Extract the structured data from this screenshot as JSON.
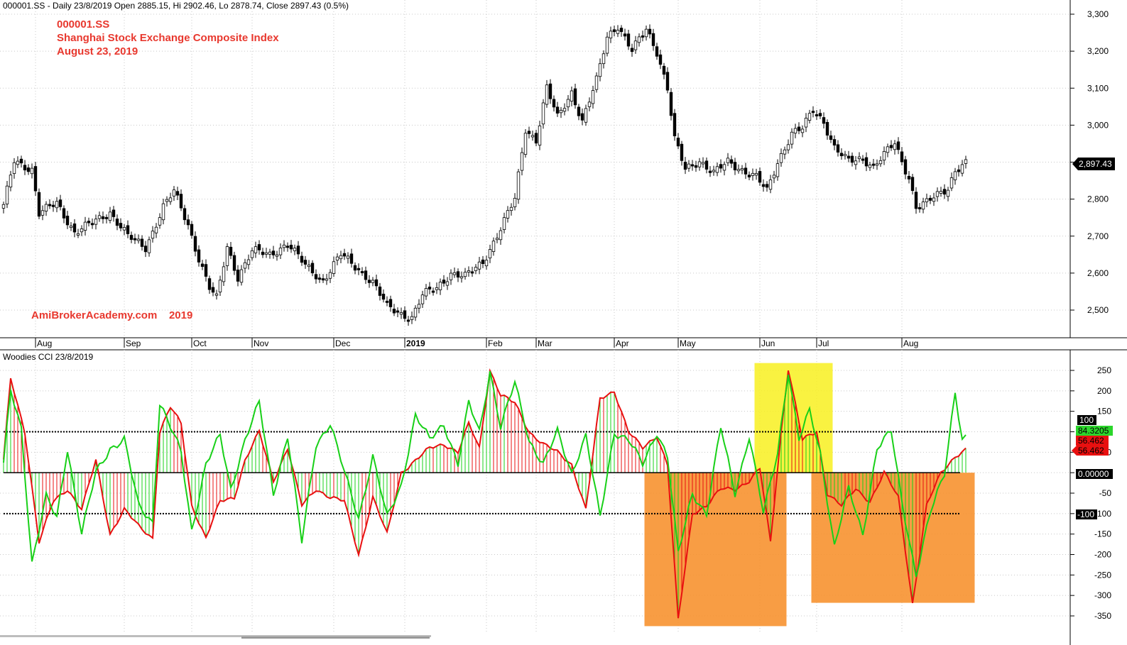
{
  "header": {
    "price_info": "000001.SS - Daily 23/8/2019 Open 2885.15, Hi 2902.46, Lo 2878.74, Close 2897.43 (0.5%)",
    "indicator_title": "Woodies CCI  23/8/2019"
  },
  "annotations": {
    "symbol": "000001.SS",
    "name": "Shanghai Stock Exchange Composite Index",
    "date": "August 23, 2019",
    "watermark": "AmiBrokerAcademy.com    2019"
  },
  "colors": {
    "bull_candle": "#ffffff",
    "bear_candle": "#000000",
    "cci_fast": "#18d018",
    "cci_slow": "#e81010",
    "highlight_yellow": "#f8f020",
    "highlight_orange": "#f7902a",
    "grid": "#c8c8c8"
  },
  "chart_data": [
    {
      "type": "candlestick",
      "title": "000001.SS",
      "ylim": [
        2430,
        3320
      ],
      "y_ticks": [
        "3,300",
        "3,200",
        "3,100",
        "3,000",
        "2,900",
        "2,800",
        "2,700",
        "2,600",
        "2,500"
      ],
      "last_close_label": "2,897.43",
      "x_labels": [
        {
          "label": "Aug",
          "bold": false
        },
        {
          "label": "Sep",
          "bold": false
        },
        {
          "label": "Oct",
          "bold": false
        },
        {
          "label": "Nov",
          "bold": false
        },
        {
          "label": "Dec",
          "bold": false
        },
        {
          "label": "2019",
          "bold": true
        },
        {
          "label": "Feb",
          "bold": false
        },
        {
          "label": "Mar",
          "bold": false
        },
        {
          "label": "Apr",
          "bold": false
        },
        {
          "label": "May",
          "bold": false
        },
        {
          "label": "Jun",
          "bold": false
        },
        {
          "label": "Jul",
          "bold": false
        },
        {
          "label": "Aug",
          "bold": false
        }
      ],
      "close_anchors": [
        [
          0,
          2780
        ],
        [
          3,
          2905
        ],
        [
          8,
          2880
        ],
        [
          10,
          2760
        ],
        [
          15,
          2790
        ],
        [
          20,
          2710
        ],
        [
          25,
          2735
        ],
        [
          30,
          2765
        ],
        [
          35,
          2700
        ],
        [
          40,
          2668
        ],
        [
          45,
          2780
        ],
        [
          48,
          2820
        ],
        [
          52,
          2730
        ],
        [
          55,
          2640
        ],
        [
          58,
          2560
        ],
        [
          60,
          2530
        ],
        [
          63,
          2670
        ],
        [
          66,
          2590
        ],
        [
          70,
          2660
        ],
        [
          75,
          2650
        ],
        [
          80,
          2680
        ],
        [
          85,
          2620
        ],
        [
          90,
          2580
        ],
        [
          95,
          2650
        ],
        [
          100,
          2610
        ],
        [
          104,
          2575
        ],
        [
          108,
          2510
        ],
        [
          112,
          2490
        ],
        [
          115,
          2480
        ],
        [
          118,
          2540
        ],
        [
          122,
          2560
        ],
        [
          126,
          2600
        ],
        [
          130,
          2590
        ],
        [
          135,
          2630
        ],
        [
          140,
          2720
        ],
        [
          144,
          2800
        ],
        [
          147,
          2990
        ],
        [
          150,
          2960
        ],
        [
          153,
          3100
        ],
        [
          156,
          3020
        ],
        [
          160,
          3090
        ],
        [
          163,
          3010
        ],
        [
          167,
          3120
        ],
        [
          170,
          3240
        ],
        [
          173,
          3270
        ],
        [
          177,
          3200
        ],
        [
          181,
          3260
        ],
        [
          184,
          3200
        ],
        [
          187,
          3100
        ],
        [
          189,
          2960
        ],
        [
          192,
          2880
        ],
        [
          196,
          2905
        ],
        [
          200,
          2870
        ],
        [
          204,
          2900
        ],
        [
          208,
          2880
        ],
        [
          212,
          2860
        ],
        [
          215,
          2820
        ],
        [
          218,
          2900
        ],
        [
          222,
          2980
        ],
        [
          225,
          2990
        ],
        [
          228,
          3040
        ],
        [
          231,
          3010
        ],
        [
          234,
          2940
        ],
        [
          238,
          2900
        ],
        [
          242,
          2910
        ],
        [
          245,
          2890
        ],
        [
          248,
          2920
        ],
        [
          251,
          2950
        ],
        [
          253,
          2900
        ],
        [
          255,
          2860
        ],
        [
          257,
          2780
        ],
        [
          260,
          2790
        ],
        [
          263,
          2810
        ],
        [
          266,
          2830
        ],
        [
          268,
          2880
        ],
        [
          271,
          2897
        ]
      ]
    },
    {
      "type": "line",
      "title": "Woodies CCI",
      "ylim": [
        -380,
        290
      ],
      "y_ticks": [
        "250",
        "200",
        "150",
        "100",
        "50",
        "0",
        "-50",
        "-100",
        "-150",
        "-200",
        "-250",
        "-300",
        "-350"
      ],
      "levels": [
        100,
        0,
        -100
      ],
      "level_labels": [
        "100",
        "0.00000",
        "-100"
      ],
      "series": [
        {
          "values_label": "84.3205",
          "anchors": [
            [
              0,
              20
            ],
            [
              2,
              200
            ],
            [
              5,
              110
            ],
            [
              8,
              -220
            ],
            [
              12,
              -60
            ],
            [
              15,
              -110
            ],
            [
              18,
              60
            ],
            [
              22,
              -150
            ],
            [
              26,
              0
            ],
            [
              30,
              60
            ],
            [
              34,
              80
            ],
            [
              38,
              -80
            ],
            [
              42,
              -120
            ],
            [
              44,
              170
            ],
            [
              47,
              110
            ],
            [
              50,
              50
            ],
            [
              53,
              -140
            ],
            [
              57,
              20
            ],
            [
              61,
              90
            ],
            [
              64,
              -40
            ],
            [
              68,
              80
            ],
            [
              72,
              170
            ],
            [
              76,
              -50
            ],
            [
              80,
              90
            ],
            [
              84,
              -170
            ],
            [
              88,
              70
            ],
            [
              92,
              120
            ],
            [
              96,
              0
            ],
            [
              100,
              -110
            ],
            [
              104,
              40
            ],
            [
              108,
              -110
            ],
            [
              112,
              -30
            ],
            [
              116,
              140
            ],
            [
              120,
              80
            ],
            [
              124,
              120
            ],
            [
              128,
              20
            ],
            [
              131,
              170
            ],
            [
              134,
              100
            ],
            [
              137,
              250
            ],
            [
              140,
              110
            ],
            [
              144,
              220
            ],
            [
              148,
              80
            ],
            [
              152,
              20
            ],
            [
              156,
              100
            ],
            [
              160,
              0
            ],
            [
              164,
              90
            ],
            [
              168,
              -110
            ],
            [
              172,
              100
            ],
            [
              176,
              80
            ],
            [
              180,
              20
            ],
            [
              184,
              100
            ],
            [
              187,
              40
            ],
            [
              190,
              -200
            ],
            [
              194,
              -50
            ],
            [
              198,
              -100
            ],
            [
              202,
              110
            ],
            [
              206,
              -50
            ],
            [
              210,
              90
            ],
            [
              214,
              -100
            ],
            [
              218,
              50
            ],
            [
              221,
              250
            ],
            [
              224,
              80
            ],
            [
              227,
              150
            ],
            [
              230,
              50
            ],
            [
              234,
              -180
            ],
            [
              238,
              -40
            ],
            [
              242,
              -150
            ],
            [
              246,
              60
            ],
            [
              250,
              100
            ],
            [
              253,
              -70
            ],
            [
              257,
              -250
            ],
            [
              261,
              -100
            ],
            [
              265,
              0
            ],
            [
              268,
              200
            ],
            [
              270,
              80
            ],
            [
              271,
              84
            ]
          ]
        },
        {
          "values_label": "56.462",
          "anchors": [
            [
              0,
              30
            ],
            [
              2,
              230
            ],
            [
              6,
              100
            ],
            [
              10,
              -170
            ],
            [
              14,
              -70
            ],
            [
              18,
              -40
            ],
            [
              22,
              -90
            ],
            [
              26,
              30
            ],
            [
              30,
              -150
            ],
            [
              34,
              -90
            ],
            [
              38,
              -130
            ],
            [
              42,
              -160
            ],
            [
              44,
              100
            ],
            [
              47,
              160
            ],
            [
              50,
              120
            ],
            [
              53,
              -80
            ],
            [
              57,
              -160
            ],
            [
              61,
              -70
            ],
            [
              65,
              -60
            ],
            [
              68,
              30
            ],
            [
              72,
              100
            ],
            [
              76,
              -20
            ],
            [
              80,
              60
            ],
            [
              84,
              -80
            ],
            [
              88,
              -40
            ],
            [
              92,
              -60
            ],
            [
              96,
              -70
            ],
            [
              100,
              -200
            ],
            [
              104,
              -60
            ],
            [
              108,
              -150
            ],
            [
              112,
              0
            ],
            [
              116,
              30
            ],
            [
              120,
              60
            ],
            [
              124,
              70
            ],
            [
              128,
              50
            ],
            [
              131,
              120
            ],
            [
              134,
              60
            ],
            [
              137,
              250
            ],
            [
              140,
              190
            ],
            [
              144,
              170
            ],
            [
              148,
              100
            ],
            [
              152,
              70
            ],
            [
              156,
              50
            ],
            [
              160,
              20
            ],
            [
              164,
              -90
            ],
            [
              168,
              180
            ],
            [
              172,
              200
            ],
            [
              176,
              100
            ],
            [
              180,
              60
            ],
            [
              184,
              90
            ],
            [
              187,
              20
            ],
            [
              190,
              -360
            ],
            [
              194,
              -100
            ],
            [
              198,
              -80
            ],
            [
              202,
              -40
            ],
            [
              206,
              -40
            ],
            [
              210,
              -20
            ],
            [
              213,
              10
            ],
            [
              216,
              -170
            ],
            [
              219,
              100
            ],
            [
              221,
              255
            ],
            [
              225,
              80
            ],
            [
              229,
              100
            ],
            [
              232,
              -50
            ],
            [
              236,
              -80
            ],
            [
              240,
              -40
            ],
            [
              244,
              -70
            ],
            [
              248,
              0
            ],
            [
              252,
              -60
            ],
            [
              256,
              -320
            ],
            [
              260,
              -80
            ],
            [
              264,
              0
            ],
            [
              268,
              40
            ],
            [
              271,
              56
            ]
          ]
        }
      ],
      "highlight_boxes": [
        {
          "kind": "orange",
          "x0": 180.5,
          "x1": 220.5,
          "y0": 0,
          "y1": -375
        },
        {
          "kind": "yellow",
          "x0": 211.5,
          "x1": 233.5,
          "y0": 268,
          "y1": 0
        },
        {
          "kind": "orange",
          "x0": 227.5,
          "x1": 273.5,
          "y0": 0,
          "y1": -318
        }
      ]
    }
  ]
}
